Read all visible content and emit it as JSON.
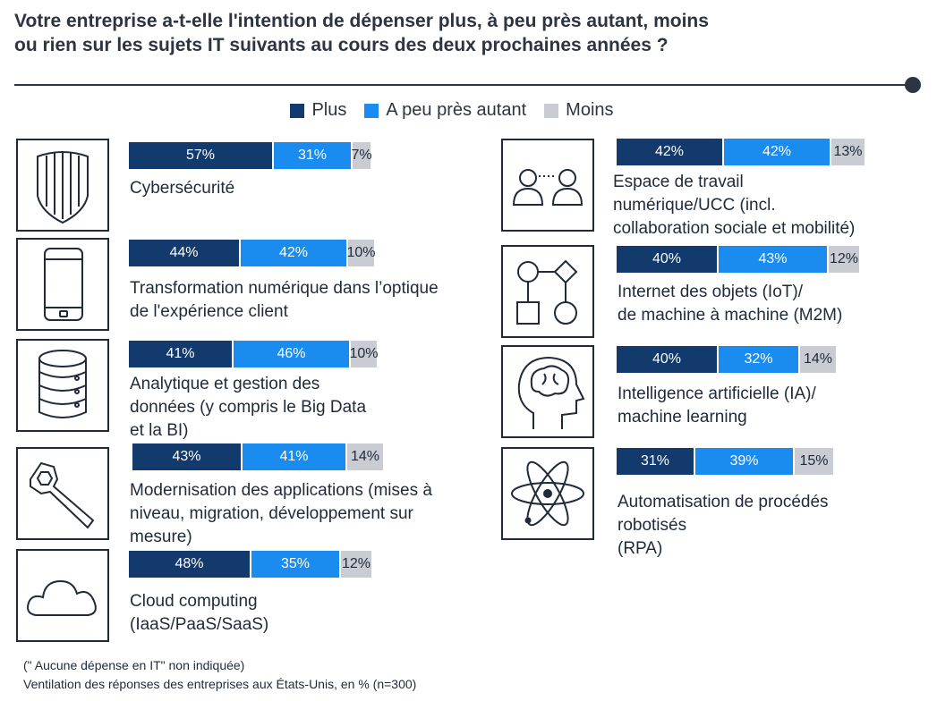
{
  "title": "Votre entreprise a-t-elle l'intention de dépenser plus, à peu près autant, moins\nou rien sur les sujets IT suivants au cours des deux prochaines années ?",
  "legend": [
    {
      "label": "Plus",
      "color": "#123a6d"
    },
    {
      "label": "A peu près autant",
      "color": "#1a8cf0"
    },
    {
      "label": "Moins",
      "color": "#c9ccd3"
    }
  ],
  "footnote_1": "(\" Aucune dépense en IT\" non indiquée)",
  "footnote_2": "Ventilation des réponses des entreprises aux États-Unis, en % (n=300)",
  "chart_data": {
    "type": "bar",
    "stacked": true,
    "orientation": "horizontal",
    "unit": "%",
    "series_names": [
      "Plus",
      "A peu près autant",
      "Moins"
    ],
    "categories": [
      {
        "label": "Cybersécurité",
        "icon": "shield-icon",
        "values": [
          57,
          31,
          7
        ]
      },
      {
        "label": "Transformation numérique dans l’optique\nde l'expérience client",
        "icon": "smartphone-icon",
        "values": [
          44,
          42,
          10
        ]
      },
      {
        "label": "Analytique et gestion des\ndonnées (y compris le Big Data\net la BI)",
        "icon": "database-icon",
        "values": [
          41,
          46,
          10
        ]
      },
      {
        "label": "Modernisation des applications (mises à\nniveau, migration, développement sur\nmesure)",
        "icon": "wrench-icon",
        "values": [
          43,
          41,
          14
        ]
      },
      {
        "label": "Cloud computing\n(IaaS/PaaS/SaaS)",
        "icon": "cloud-icon",
        "values": [
          48,
          35,
          12
        ]
      },
      {
        "label": "Espace de travail\nnumérique/UCC (incl.\ncollaboration sociale et mobilité)",
        "icon": "people-icon",
        "values": [
          42,
          42,
          13
        ]
      },
      {
        "label": "Internet des objets (IoT)/\nde machine à machine (M2M)",
        "icon": "flowchart-icon",
        "values": [
          40,
          43,
          12
        ]
      },
      {
        "label": "Intelligence artificielle (IA)/\nmachine learning",
        "icon": "brain-head-icon",
        "values": [
          40,
          32,
          14
        ]
      },
      {
        "label": "Automatisation de procédés\nrobotisés\n(RPA)",
        "icon": "atom-icon",
        "values": [
          31,
          39,
          15
        ]
      }
    ]
  }
}
